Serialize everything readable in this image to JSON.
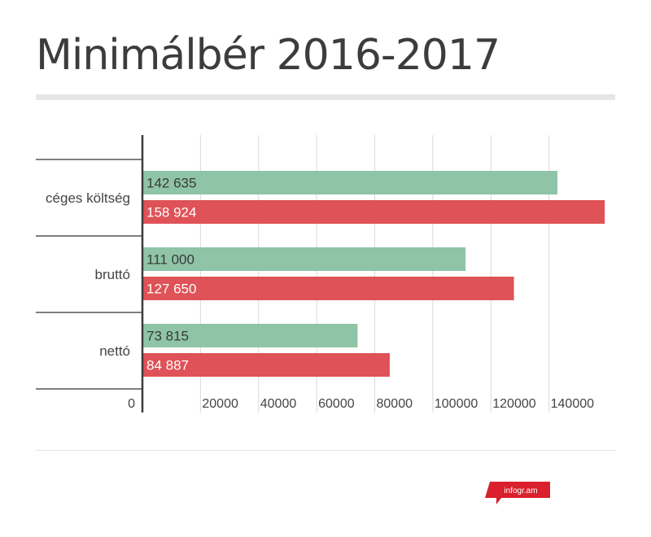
{
  "header": {
    "title": "Minimálbér 2016-2017"
  },
  "chart_data": {
    "type": "bar",
    "orientation": "horizontal",
    "categories": [
      "céges költség",
      "bruttó",
      "nettó"
    ],
    "series": [
      {
        "color": "#8fc4a7",
        "values": [
          142635,
          111000,
          73815
        ],
        "labels": [
          "142 635",
          "111 000",
          "73 815"
        ]
      },
      {
        "color": "#df5257",
        "values": [
          158924,
          127650,
          84887
        ],
        "labels": [
          "158 924",
          "127 650",
          "84 887"
        ]
      }
    ],
    "xlim": [
      0,
      160000
    ],
    "xticks": [
      0,
      20000,
      40000,
      60000,
      80000,
      100000,
      120000,
      140000
    ],
    "xtick_labels": [
      "0",
      "20000",
      "40000",
      "60000",
      "80000",
      "100000",
      "120000",
      "140000"
    ],
    "grid": true,
    "legend": false
  },
  "footer": {
    "brand": "infogr.am",
    "brand_color": "#d9202c"
  }
}
